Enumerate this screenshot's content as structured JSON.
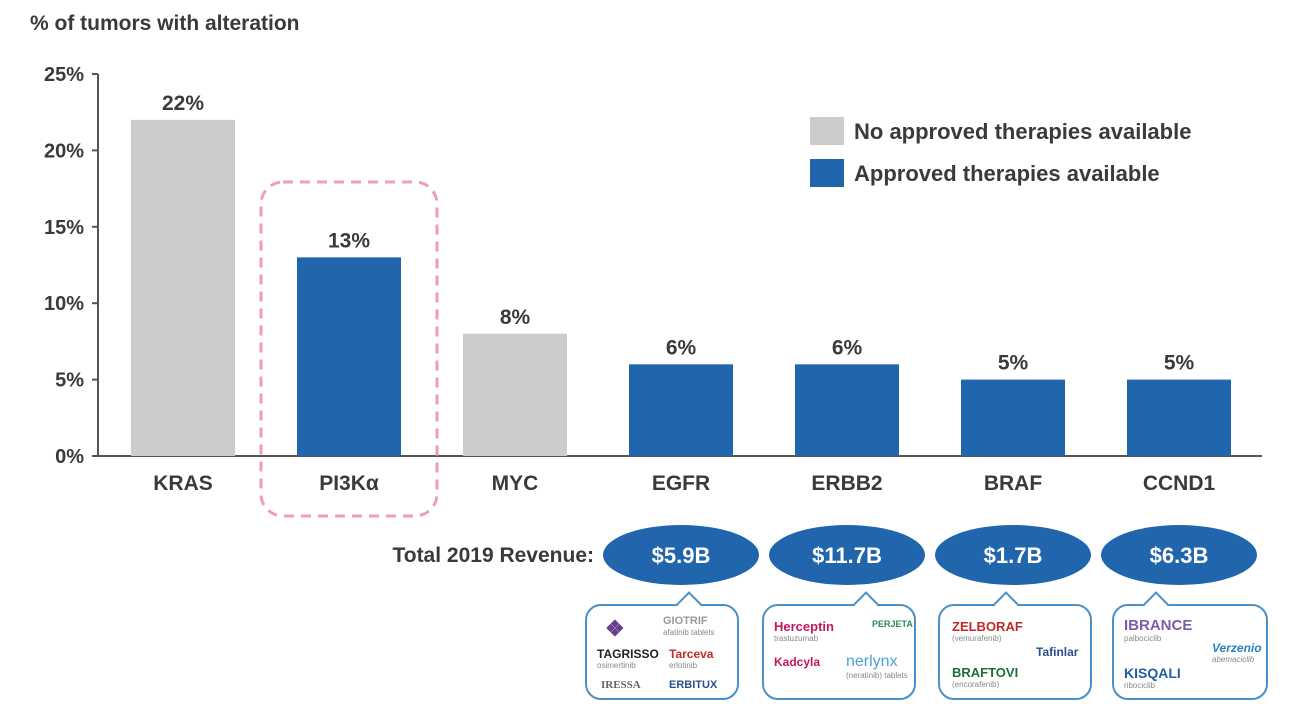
{
  "chart_data": {
    "type": "bar",
    "ylabel": "% of tumors with alteration",
    "categories": [
      "KRAS",
      "PI3Kα",
      "MYC",
      "EGFR",
      "ERBB2",
      "BRAF",
      "CCND1"
    ],
    "values": [
      22,
      13,
      8,
      6,
      6,
      5,
      5
    ],
    "value_labels": [
      "22%",
      "13%",
      "8%",
      "6%",
      "6%",
      "5%",
      "5%"
    ],
    "status": [
      "none",
      "approved",
      "none",
      "approved",
      "approved",
      "approved",
      "approved"
    ],
    "highlighted_category": "PI3Kα",
    "ylim": [
      0,
      25
    ],
    "yticks": [
      0,
      5,
      10,
      15,
      20,
      25
    ],
    "ytick_labels": [
      "0%",
      "5%",
      "10%",
      "15%",
      "20%",
      "25%"
    ],
    "legend": [
      {
        "label": "No approved therapies available",
        "color": "#cccccc"
      },
      {
        "label": "Approved therapies available",
        "color": "#2166ac"
      }
    ],
    "legend_position": "top-right",
    "colors": {
      "none": "#cccccc",
      "approved": "#2166ac",
      "highlight": "#f29ac0"
    }
  },
  "revenue": {
    "label": "Total 2019 Revenue:",
    "items": [
      {
        "category": "EGFR",
        "value": "$5.9B"
      },
      {
        "category": "ERBB2",
        "value": "$11.7B"
      },
      {
        "category": "BRAF",
        "value": "$1.7B"
      },
      {
        "category": "CCND1",
        "value": "$6.3B"
      }
    ]
  },
  "therapy_logos": {
    "egfr": {
      "giotrif": "GIOTRIF",
      "giotrif_sub": "afatinib tablets",
      "tagrisso": "TAGRISSO",
      "tagrisso_sub": "osimertinib",
      "tarceva": "Tarceva",
      "tarceva_sub": "erlotinib",
      "iressa": "IRESSA",
      "erbitux": "ERBITUX"
    },
    "erbb2": {
      "herceptin": "Herceptin",
      "herceptin_sub": "trastuzumab",
      "perjeta": "PERJETA",
      "kadcyla": "Kadcyla",
      "nerlynx": "nerlynx",
      "nerlynx_sub": "(neratinib) tablets"
    },
    "braf": {
      "zelboraf": "ZELBORAF",
      "zelboraf_sub": "(vemurafenib)",
      "tafinlar": "Tafinlar",
      "braftovi": "BRAFTOVI",
      "braftovi_sub": "(encorafenib)"
    },
    "ccnd1": {
      "ibrance": "IBRANCE",
      "ibrance_sub": "palbociclib",
      "verzenio": "Verzenio",
      "verzenio_sub": "abemaciclib",
      "kisqali": "KISQALI",
      "kisqali_sub": "ribociclib"
    }
  }
}
